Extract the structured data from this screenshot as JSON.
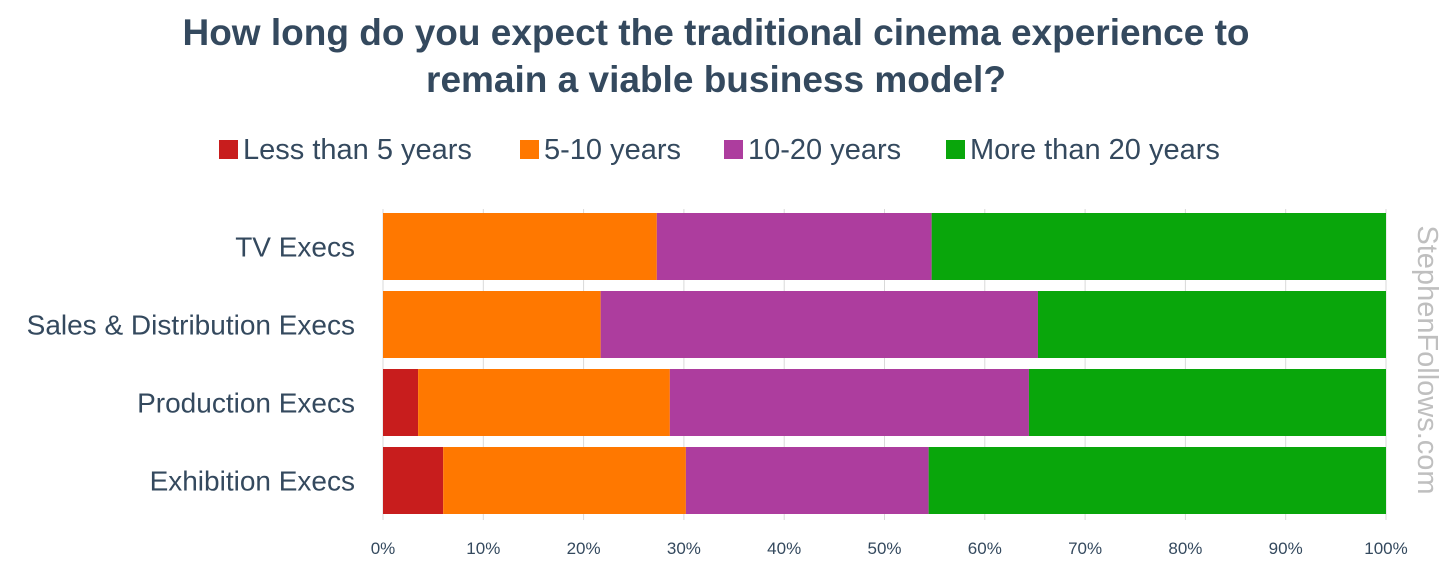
{
  "chart_data": {
    "type": "bar",
    "orientation": "horizontal",
    "stacked": true,
    "normalized": true,
    "title_lines": [
      "How long do you expect the traditional cinema experience to",
      "remain a viable business model?"
    ],
    "categories": [
      "TV Execs",
      "Sales & Distribution Execs",
      "Production Execs",
      "Exhibition Execs"
    ],
    "series": [
      {
        "name": "Less than 5 years",
        "color": "#c81d1d",
        "values": [
          0,
          0,
          3.5,
          6
        ]
      },
      {
        "name": "5-10 years",
        "color": "#ff7800",
        "values": [
          27.3,
          21.7,
          25.1,
          24.2
        ]
      },
      {
        "name": "10-20 years",
        "color": "#ad3d9e",
        "values": [
          27.4,
          43.6,
          35.8,
          24.2
        ]
      },
      {
        "name": "More than 20 years",
        "color": "#09a60b",
        "values": [
          45.3,
          34.7,
          35.6,
          45.6
        ]
      }
    ],
    "x_ticks": [
      "0%",
      "10%",
      "20%",
      "30%",
      "40%",
      "50%",
      "60%",
      "70%",
      "80%",
      "90%",
      "100%"
    ],
    "xlim": [
      0,
      100
    ],
    "xlabel": "",
    "ylabel": "",
    "grid": true,
    "legend_position": "top"
  },
  "watermark": "StephenFollows.com"
}
